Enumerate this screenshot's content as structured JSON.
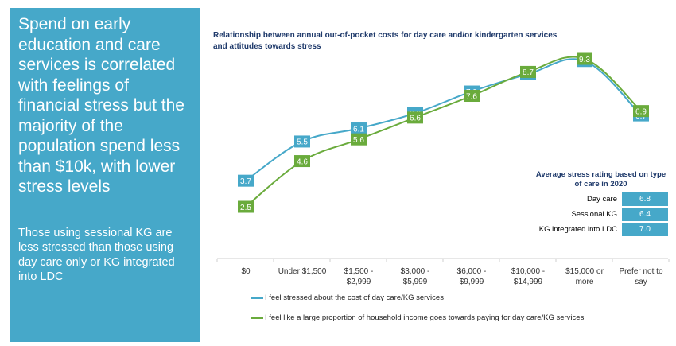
{
  "panel": {
    "headline": "Spend on early education and care services is correlated with feelings of financial stress but the majority of the population spend less than $10k, with lower stress levels",
    "subtext": "Those using sessional KG are less stressed than those using day care only or KG integrated into LDC"
  },
  "colors": {
    "panel": "#46a8c9",
    "series1": "#46a8c9",
    "series2": "#6aab3c",
    "title": "#1f3a6b"
  },
  "chart_data": {
    "type": "line",
    "title": "Relationship between annual out-of-pocket costs for day care and/or kindergarten services and attitudes towards stress",
    "categories": [
      "$0",
      "Under $1,500",
      "$1,500 - $2,999",
      "$3,000 - $5,999",
      "$6,000 - $9,999",
      "$10,000 - $14,999",
      "$15,000 or more",
      "Prefer not to say"
    ],
    "series": [
      {
        "name": "I feel stressed about the cost of day care/KG services",
        "values": [
          3.7,
          5.5,
          6.1,
          6.8,
          7.8,
          8.6,
          9.2,
          6.7
        ],
        "color": "#46a8c9"
      },
      {
        "name": "I feel like a large proportion of  household income goes towards paying for day care/KG services",
        "values": [
          2.5,
          4.6,
          5.6,
          6.6,
          7.6,
          8.7,
          9.3,
          6.9
        ],
        "color": "#6aab3c"
      }
    ],
    "grid": false,
    "legend_position": "bottom"
  },
  "stress_table": {
    "title": "Average stress rating based on type of care in 2020",
    "rows": [
      {
        "label": "Day care",
        "value": "6.8"
      },
      {
        "label": "Sessional KG",
        "value": "6.4"
      },
      {
        "label": "KG integrated into LDC",
        "value": "7.0"
      }
    ]
  }
}
